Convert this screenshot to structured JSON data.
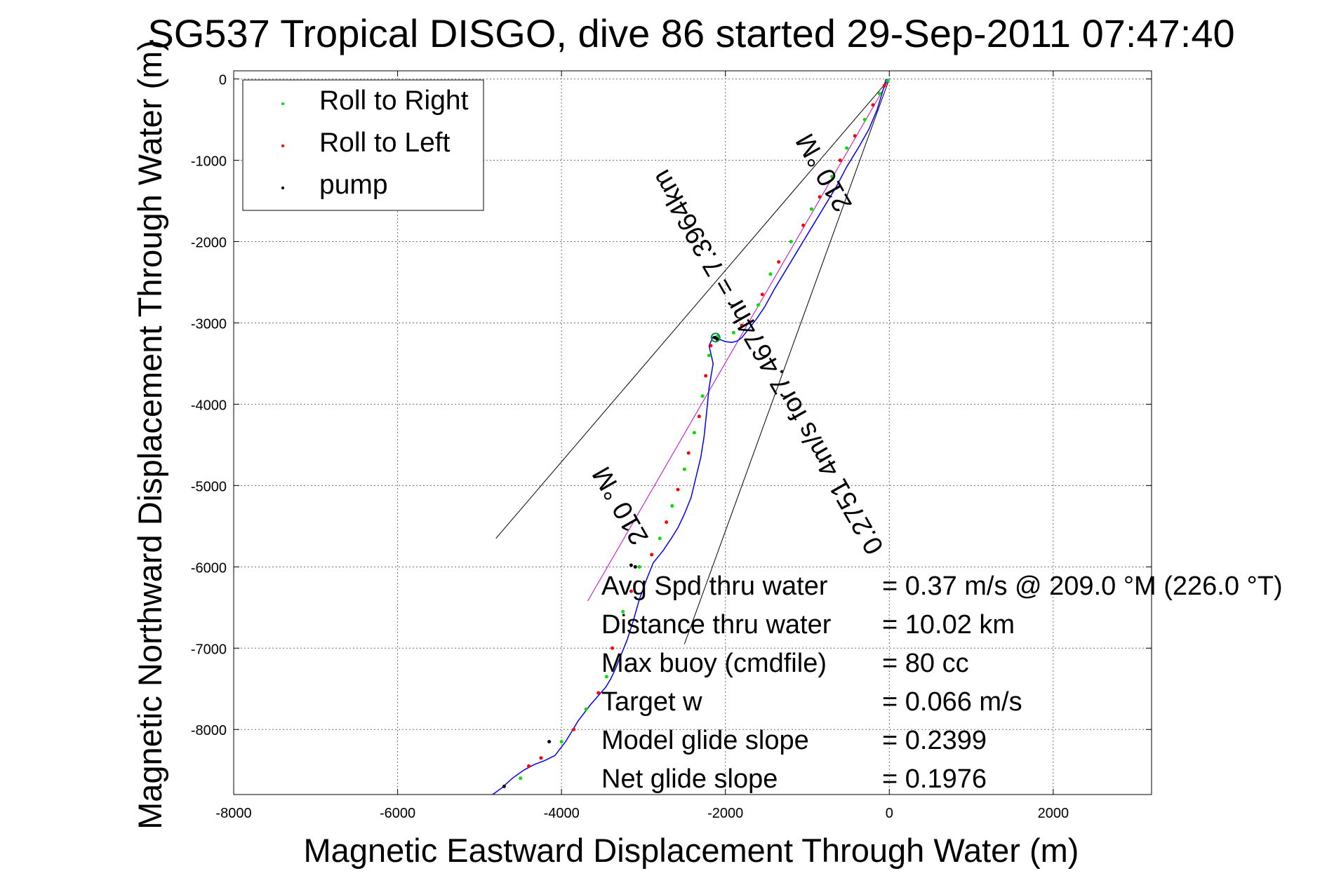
{
  "chart_data": {
    "type": "line",
    "title": "SG537 Tropical DISGO, dive 86 started 29-Sep-2011 07:47:40",
    "xlabel": "Magnetic Eastward Displacement Through Water (m)",
    "ylabel": "Magnetic Northward Displacement Through Water (m)",
    "xlim": [
      -8000,
      3200
    ],
    "ylim": [
      -8800,
      100
    ],
    "xticks": [
      -8000,
      -6000,
      -4000,
      -2000,
      0,
      2000
    ],
    "yticks": [
      0,
      -1000,
      -2000,
      -3000,
      -4000,
      -5000,
      -6000,
      -7000,
      -8000
    ],
    "grid": true,
    "legend_position": "top-left",
    "legend": [
      {
        "label": "Roll to Right",
        "color": "#00dd00"
      },
      {
        "label": "Roll to Left",
        "color": "#ff0000"
      },
      {
        "label": "pump",
        "color": "#000000"
      }
    ],
    "track_color": "#0000ff",
    "heading_line_color": "#cc00cc",
    "cone_line_color": "#000000",
    "track": {
      "x": [
        -40,
        -80,
        -150,
        -250,
        -380,
        -520,
        -650,
        -800,
        -950,
        -1100,
        -1250,
        -1400,
        -1520,
        -1620,
        -1720,
        -1800,
        -1850,
        -1920,
        -2000,
        -2080,
        -2150,
        -2200,
        -2150,
        -2200,
        -2230,
        -2260,
        -2300,
        -2360,
        -2420,
        -2500,
        -2580,
        -2660,
        -2760,
        -2880,
        -2960,
        -3050,
        -3120,
        -3200,
        -3280,
        -3340,
        -3400,
        -3460,
        -3530,
        -3650,
        -3800,
        -3950,
        -4080,
        -4200,
        -4330,
        -4460,
        -4600,
        -4730,
        -4840
      ],
      "y": [
        0,
        -150,
        -380,
        -620,
        -850,
        -1080,
        -1330,
        -1580,
        -1830,
        -2080,
        -2330,
        -2580,
        -2800,
        -2950,
        -3080,
        -3180,
        -3220,
        -3240,
        -3230,
        -3200,
        -3170,
        -3280,
        -3500,
        -3800,
        -4100,
        -4400,
        -4650,
        -4900,
        -5150,
        -5350,
        -5520,
        -5650,
        -5800,
        -5950,
        -6150,
        -6400,
        -6650,
        -6900,
        -7100,
        -7250,
        -7380,
        -7480,
        -7560,
        -7700,
        -7900,
        -8150,
        -8320,
        -8380,
        -8430,
        -8500,
        -8600,
        -8720,
        -8800
      ]
    },
    "heading_line": {
      "x": [
        0,
        -3680
      ],
      "y": [
        0,
        -6420
      ]
    },
    "cone_left": {
      "x": [
        0,
        -4800
      ],
      "y": [
        0,
        -5650
      ]
    },
    "cone_right": {
      "x": [
        0,
        -2500
      ],
      "y": [
        0,
        -6950
      ]
    },
    "green_points": [
      [
        -20,
        -20
      ],
      [
        -120,
        -180
      ],
      [
        -300,
        -500
      ],
      [
        -520,
        -850
      ],
      [
        -700,
        -1200
      ],
      [
        -950,
        -1600
      ],
      [
        -1200,
        -2000
      ],
      [
        -1450,
        -2400
      ],
      [
        -1600,
        -2780
      ],
      [
        -1900,
        -3120
      ],
      [
        -2100,
        -3170
      ],
      [
        -2200,
        -3400
      ],
      [
        -2280,
        -3900
      ],
      [
        -2380,
        -4350
      ],
      [
        -2500,
        -4800
      ],
      [
        -2650,
        -5250
      ],
      [
        -2800,
        -5650
      ],
      [
        -3050,
        -6000
      ],
      [
        -3250,
        -6550
      ],
      [
        -3450,
        -7350
      ],
      [
        -3700,
        -7750
      ],
      [
        -4000,
        -8150
      ],
      [
        -4500,
        -8600
      ]
    ],
    "red_points": [
      [
        -60,
        -80
      ],
      [
        -200,
        -320
      ],
      [
        -420,
        -700
      ],
      [
        -600,
        -1000
      ],
      [
        -850,
        -1450
      ],
      [
        -1050,
        -1800
      ],
      [
        -1350,
        -2250
      ],
      [
        -1550,
        -2650
      ],
      [
        -1800,
        -3030
      ],
      [
        -2180,
        -3280
      ],
      [
        -2240,
        -3650
      ],
      [
        -2320,
        -4150
      ],
      [
        -2450,
        -4600
      ],
      [
        -2580,
        -5050
      ],
      [
        -2720,
        -5450
      ],
      [
        -2900,
        -5850
      ],
      [
        -3150,
        -6300
      ],
      [
        -3380,
        -7000
      ],
      [
        -3550,
        -7550
      ],
      [
        -3850,
        -8000
      ],
      [
        -4250,
        -8350
      ],
      [
        -4400,
        -8450
      ]
    ],
    "pump_points": [
      [
        -2100,
        -3200
      ],
      [
        -2130,
        -3180
      ],
      [
        -3100,
        -6000
      ],
      [
        -3150,
        -5980
      ],
      [
        -4150,
        -8150
      ],
      [
        -4700,
        -8700
      ]
    ],
    "rotated_labels": {
      "top": "210 °M",
      "middle": "0.2751 4m/s for7.4674hr = 7.3964km",
      "bottom": "210 °M"
    },
    "annotations": [
      {
        "label": "Avg Spd thru water",
        "value": "=  0.37 m/s @ 209.0 °M (226.0 °T)"
      },
      {
        "label": "Distance thru water",
        "value": "= 10.02 km"
      },
      {
        "label": "Max buoy (cmdfile)",
        "value": "= 80 cc"
      },
      {
        "label": "Target w",
        "value": "= 0.066 m/s"
      },
      {
        "label": "Model glide slope",
        "value": "= 0.2399"
      },
      {
        "label": "Net glide slope",
        "value": "= 0.1976"
      }
    ]
  }
}
